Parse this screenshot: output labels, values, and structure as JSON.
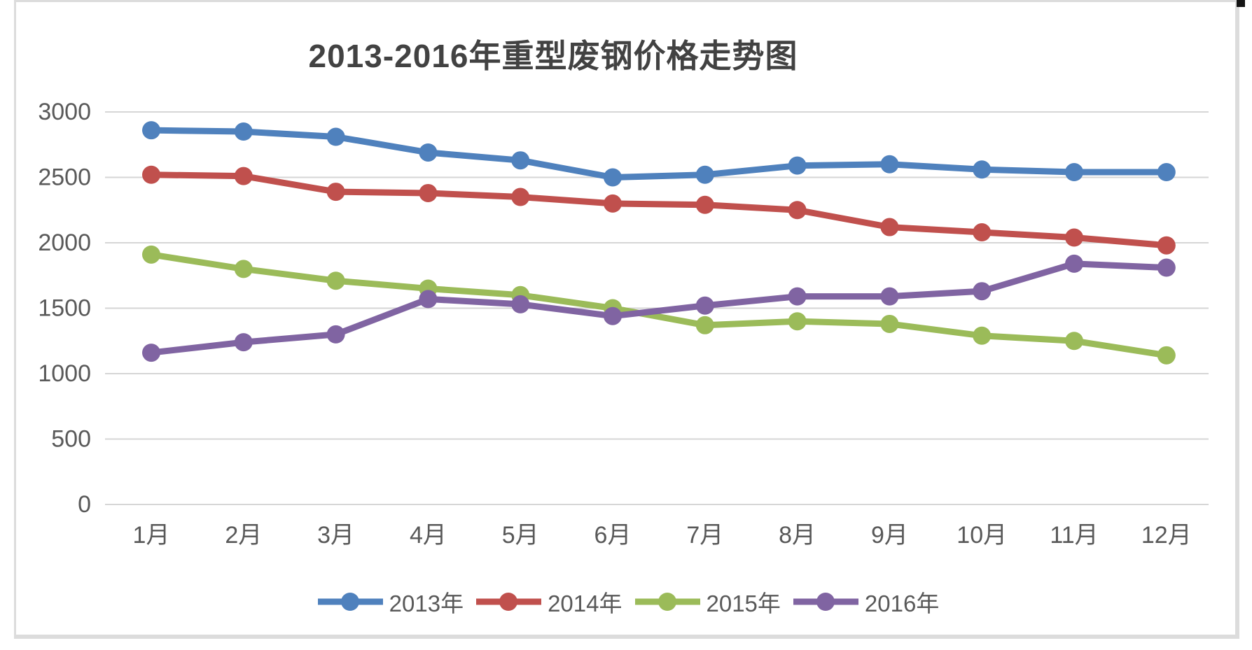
{
  "chart": {
    "title": "2013-2016年重型废钢价格走势图"
  },
  "chart_data": {
    "type": "line",
    "title": "2013-2016年重型废钢价格走势图",
    "categories": [
      "1月",
      "2月",
      "3月",
      "4月",
      "5月",
      "6月",
      "7月",
      "8月",
      "9月",
      "10月",
      "11月",
      "12月"
    ],
    "series": [
      {
        "name": "2013年",
        "color": "#4F81BD",
        "values": [
          2860,
          2850,
          2810,
          2690,
          2630,
          2500,
          2520,
          2590,
          2600,
          2560,
          2540,
          2540
        ]
      },
      {
        "name": "2014年",
        "color": "#C0504D",
        "values": [
          2520,
          2510,
          2390,
          2380,
          2350,
          2300,
          2290,
          2250,
          2120,
          2080,
          2040,
          1980
        ]
      },
      {
        "name": "2015年",
        "color": "#9BBB59",
        "values": [
          1910,
          1800,
          1710,
          1650,
          1600,
          1500,
          1370,
          1400,
          1380,
          1290,
          1250,
          1140
        ]
      },
      {
        "name": "2016年",
        "color": "#8064A2",
        "values": [
          1160,
          1240,
          1300,
          1570,
          1530,
          1440,
          1520,
          1590,
          1590,
          1630,
          1840,
          1810
        ]
      }
    ],
    "xlabel": "",
    "ylabel": "",
    "ylim": [
      0,
      3000
    ],
    "ytick_step": 500,
    "ytick_labels": [
      "3000",
      "2500",
      "2000",
      "1500",
      "1000",
      "500",
      "0"
    ],
    "grid": "horizontal",
    "legend_position": "bottom",
    "axis_label_color": "#595959",
    "gridline_color": "#d6d6d6"
  }
}
